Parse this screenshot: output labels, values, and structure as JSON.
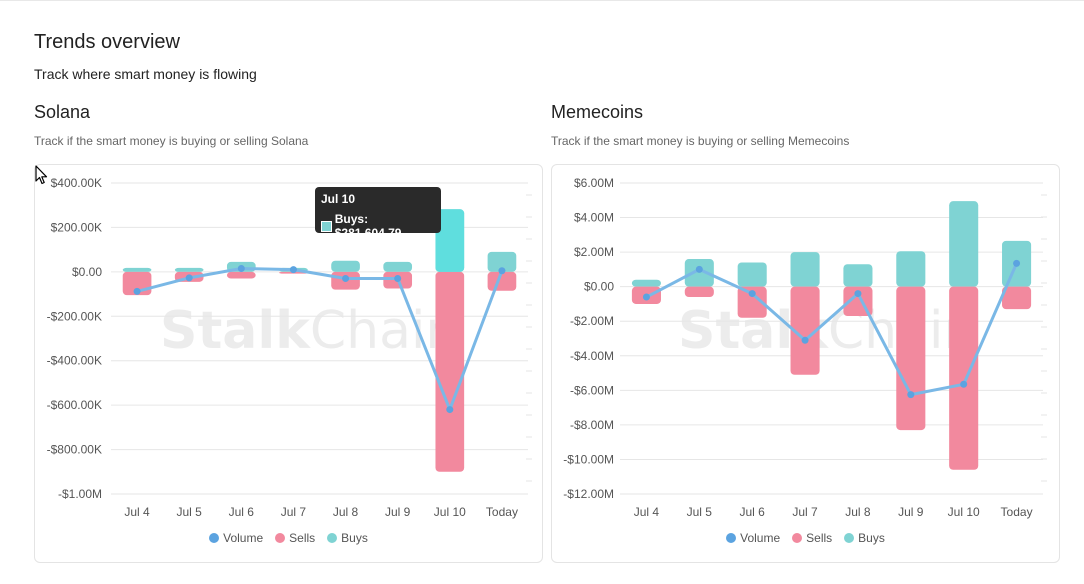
{
  "page": {
    "title": "Trends overview",
    "subtitle": "Track where smart money is flowing"
  },
  "colors": {
    "volume": "#5ba3e0",
    "sells": "#f2899e",
    "buys": "#7fd3d3",
    "grid": "#e6e6e6"
  },
  "watermark": {
    "bold": "Stalk",
    "light": "Chain"
  },
  "legend": {
    "volume": "Volume",
    "sells": "Sells",
    "buys": "Buys"
  },
  "solana": {
    "title": "Solana",
    "description": "Track if the smart money is buying or selling Solana",
    "tooltip": {
      "title": "Jul 10",
      "text": "Buys: $281,604.79"
    }
  },
  "memecoins": {
    "title": "Memecoins",
    "description": "Track if the smart money is buying or selling Memecoins"
  },
  "chart_data": [
    {
      "type": "bar",
      "name": "Solana",
      "categories": [
        "Jul 4",
        "Jul 5",
        "Jul 6",
        "Jul 7",
        "Jul 8",
        "Jul 9",
        "Jul 10",
        "Today"
      ],
      "y_ticks": [
        400000,
        200000,
        0,
        -200000,
        -400000,
        -600000,
        -800000,
        -1000000
      ],
      "y_tick_labels": [
        "$400.00K",
        "$200.00K",
        "$0.00",
        "-$200.00K",
        "-$400.00K",
        "-$600.00K",
        "-$800.00K",
        "-$1.00M"
      ],
      "ylim": [
        -1000000,
        400000
      ],
      "series": [
        {
          "name": "Buys",
          "values": [
            18000,
            18000,
            45000,
            18000,
            50000,
            45000,
            281604.79,
            90000
          ]
        },
        {
          "name": "Sells",
          "values": [
            -105000,
            -45000,
            -30000,
            -8000,
            -80000,
            -75000,
            -900000,
            -85000
          ]
        },
        {
          "name": "Volume",
          "values": [
            -88000,
            -27000,
            15000,
            10000,
            -30000,
            -30000,
            -620000,
            5000
          ]
        }
      ],
      "legend": "bottom",
      "grid": true
    },
    {
      "type": "bar",
      "name": "Memecoins",
      "categories": [
        "Jul 4",
        "Jul 5",
        "Jul 6",
        "Jul 7",
        "Jul 8",
        "Jul 9",
        "Jul 10",
        "Today"
      ],
      "y_ticks": [
        6000000,
        4000000,
        2000000,
        0,
        -2000000,
        -4000000,
        -6000000,
        -8000000,
        -10000000,
        -12000000
      ],
      "y_tick_labels": [
        "$6.00M",
        "$4.00M",
        "$2.00M",
        "$0.00",
        "-$2.00M",
        "-$4.00M",
        "-$6.00M",
        "-$8.00M",
        "-$10.00M",
        "-$12.00M"
      ],
      "ylim": [
        -12000000,
        6000000
      ],
      "series": [
        {
          "name": "Buys",
          "values": [
            400000,
            1600000,
            1400000,
            2000000,
            1300000,
            2050000,
            4950000,
            2650000
          ]
        },
        {
          "name": "Sells",
          "values": [
            -1000000,
            -600000,
            -1800000,
            -5100000,
            -1700000,
            -8300000,
            -10600000,
            -1300000
          ]
        },
        {
          "name": "Volume",
          "values": [
            -600000,
            1000000,
            -400000,
            -3100000,
            -400000,
            -6250000,
            -5650000,
            1350000
          ]
        }
      ],
      "legend": "bottom",
      "grid": true
    }
  ]
}
